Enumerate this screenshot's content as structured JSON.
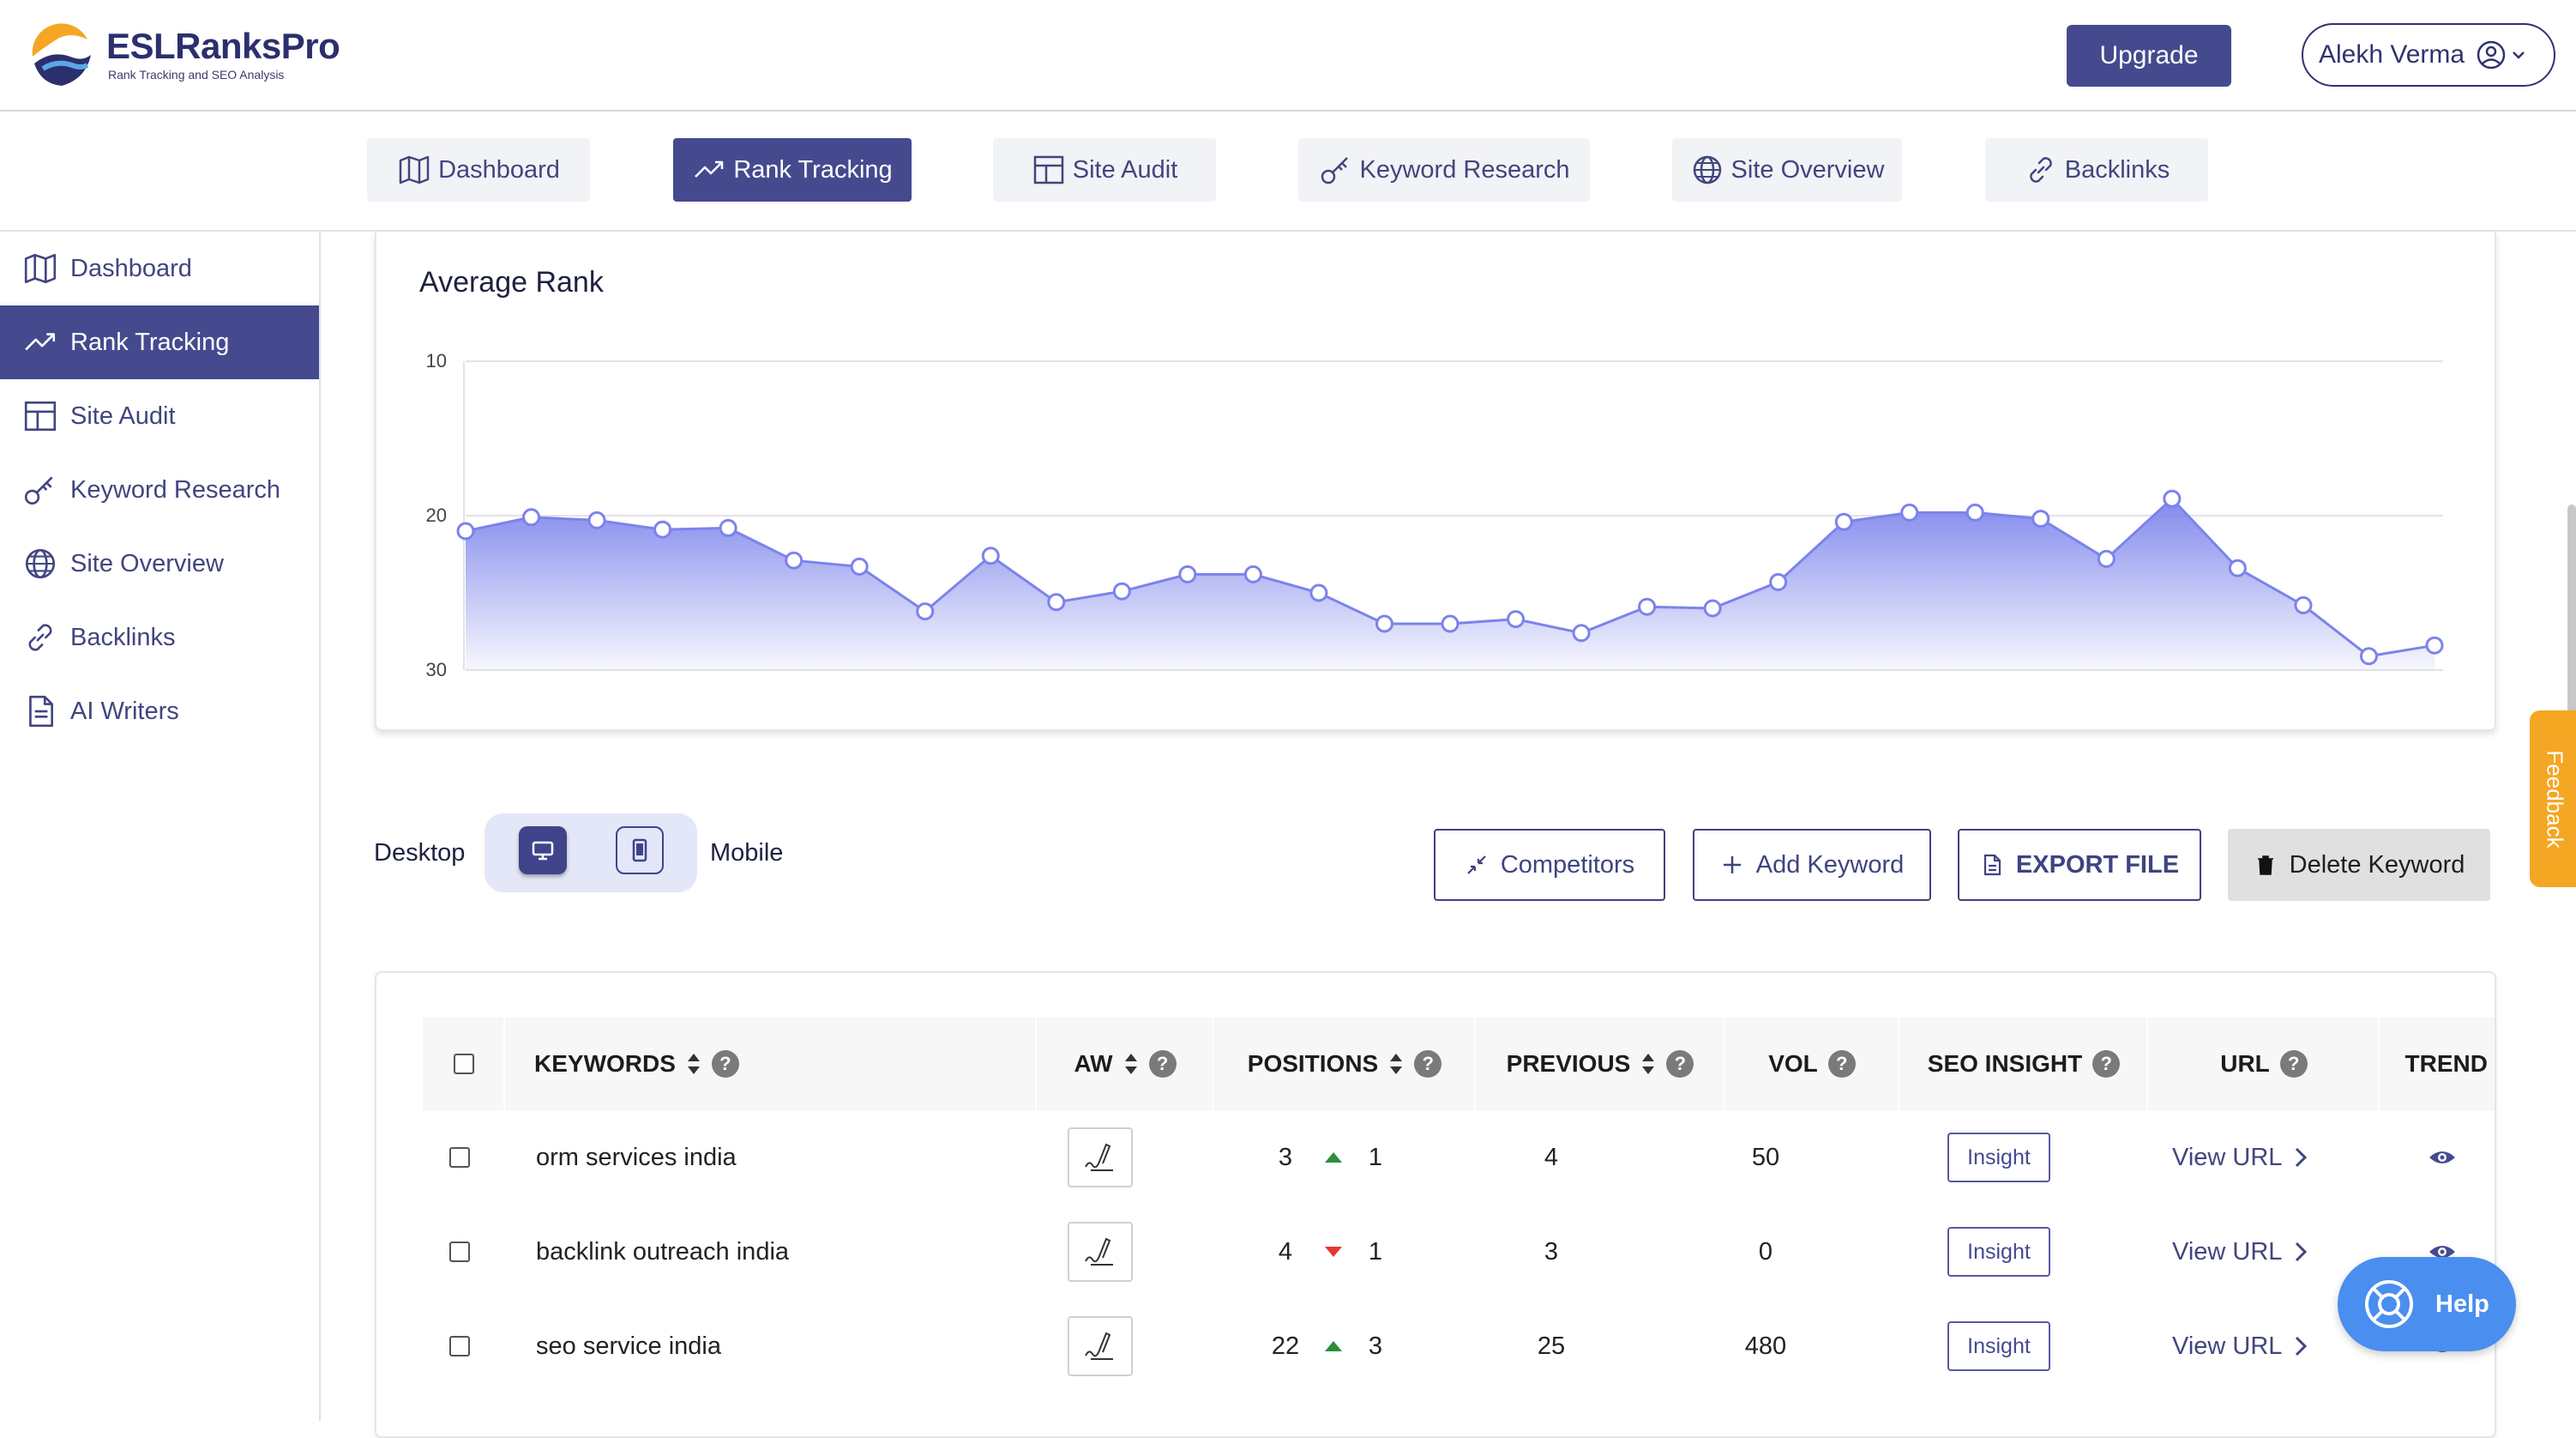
{
  "brand": {
    "name": "ESLRanksPro",
    "tagline": "Rank Tracking and SEO Analysis"
  },
  "header": {
    "upgrade_label": "Upgrade",
    "user_name": "Alekh Verma"
  },
  "topnav": [
    {
      "label": "Dashboard",
      "icon": "map-icon"
    },
    {
      "label": "Rank Tracking",
      "icon": "trending-up-icon",
      "active": true
    },
    {
      "label": "Site Audit",
      "icon": "layout-icon"
    },
    {
      "label": "Keyword Research",
      "icon": "key-icon"
    },
    {
      "label": "Site Overview",
      "icon": "globe-icon"
    },
    {
      "label": "Backlinks",
      "icon": "link-icon"
    }
  ],
  "sidebar": [
    {
      "label": "Dashboard",
      "icon": "map-icon"
    },
    {
      "label": "Rank Tracking",
      "icon": "trending-up-icon",
      "active": true
    },
    {
      "label": "Site Audit",
      "icon": "layout-icon"
    },
    {
      "label": "Keyword Research",
      "icon": "key-icon"
    },
    {
      "label": "Site Overview",
      "icon": "globe-icon"
    },
    {
      "label": "Backlinks",
      "icon": "link-icon"
    },
    {
      "label": "AI Writers",
      "icon": "document-icon"
    }
  ],
  "chart_data": {
    "type": "area",
    "title": "Average Rank",
    "y_ticks": [
      "10",
      "20",
      "30"
    ],
    "ylim": [
      10,
      30
    ],
    "y_reversed": true,
    "grid": true,
    "values": [
      21.0,
      20.1,
      20.3,
      20.9,
      20.8,
      22.9,
      23.3,
      26.2,
      22.6,
      25.6,
      24.9,
      23.8,
      23.8,
      25.0,
      27.0,
      27.0,
      26.7,
      27.6,
      25.9,
      26.0,
      24.3,
      20.4,
      19.8,
      19.8,
      20.2,
      22.8,
      18.9,
      23.4,
      25.8,
      29.1,
      28.4
    ],
    "color": "#7b83eb"
  },
  "controls": {
    "desktop_label": "Desktop",
    "mobile_label": "Mobile",
    "competitors_label": "Competitors",
    "add_keyword_label": "Add Keyword",
    "export_label": "EXPORT FILE",
    "delete_label": "Delete Keyword"
  },
  "table": {
    "headers": {
      "keywords": "KEYWORDS",
      "aw": "AW",
      "positions": "POSITIONS",
      "previous": "PREVIOUS",
      "vol": "VOL",
      "seo_insight": "SEO INSIGHT",
      "url": "URL",
      "trend": "TREND"
    },
    "rows": [
      {
        "keyword": "orm services india",
        "position": "3",
        "change": "1",
        "direction": "up",
        "previous": "4",
        "vol": "50",
        "insight": "Insight",
        "url": "View URL"
      },
      {
        "keyword": "backlink outreach india",
        "position": "4",
        "change": "1",
        "direction": "down",
        "previous": "3",
        "vol": "0",
        "insight": "Insight",
        "url": "View URL"
      },
      {
        "keyword": "seo service india",
        "position": "22",
        "change": "3",
        "direction": "up",
        "previous": "25",
        "vol": "480",
        "insight": "Insight",
        "url": "View URL"
      }
    ]
  },
  "feedback_label": "Feedback",
  "help_label": "Help",
  "colors": {
    "primary": "#454a8f",
    "chart_fill": "#7b83eb",
    "feedback": "#f5a623",
    "help": "#4a8ef0"
  }
}
